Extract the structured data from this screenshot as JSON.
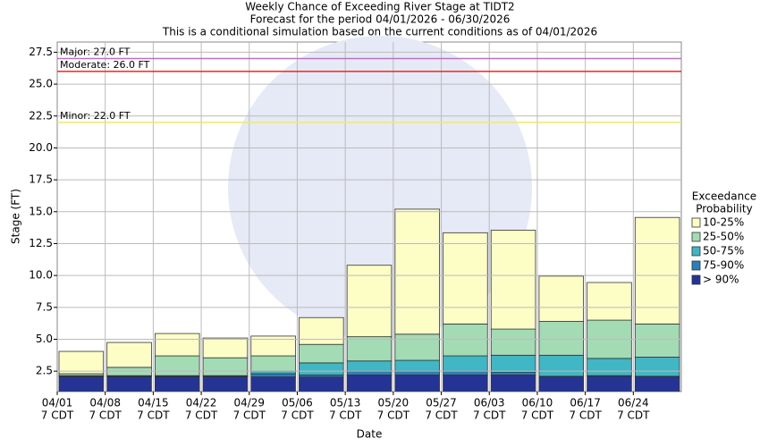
{
  "chart_data": {
    "type": "bar",
    "stacked": true,
    "title": [
      "Weekly Chance of Exceeding River Stage at TIDT2",
      "Forecast for the period 04/01/2026 - 06/30/2026",
      "This is a conditional simulation based on the current conditions as of 04/01/2026"
    ],
    "x_label": "Date",
    "y_label": "Stage (FT)",
    "categories": [
      "04/01",
      "04/08",
      "04/15",
      "04/22",
      "04/29",
      "05/06",
      "05/13",
      "05/20",
      "05/27",
      "06/03",
      "06/10",
      "06/17",
      "06/24"
    ],
    "category_suffix": "7 CDT",
    "ylim": [
      0.9,
      28.3
    ],
    "yticks": [
      2.5,
      {
        "value": 5,
        "label": "5.0"
      },
      7.5,
      {
        "value": 10,
        "label": "10.0"
      },
      12.5,
      {
        "value": 15,
        "label": "15.0"
      },
      17.5,
      {
        "value": 20,
        "label": "20.0"
      },
      22.5,
      {
        "value": 25,
        "label": "25.0"
      },
      27.5
    ],
    "grid": true,
    "legend_title": [
      "Exceedance",
      "Probability"
    ],
    "legend_position": "right",
    "series": [
      {
        "name": "10-25%",
        "color": "#fdfdc6",
        "values": [
          1.75,
          1.95,
          1.75,
          1.55,
          1.55,
          2.1,
          5.6,
          9.8,
          7.15,
          7.75,
          3.55,
          2.95,
          8.35
        ]
      },
      {
        "name": "25-50%",
        "color": "#a3dbb5",
        "values": [
          0.15,
          0.65,
          1.55,
          1.4,
          1.2,
          1.45,
          1.9,
          2.05,
          2.5,
          2.05,
          2.65,
          3.0,
          2.6
        ]
      },
      {
        "name": "50-75%",
        "color": "#41b6c4",
        "values": [
          0.05,
          0.05,
          0.05,
          0.05,
          0.2,
          0.95,
          0.8,
          0.85,
          1.2,
          1.35,
          1.65,
          1.35,
          1.5
        ]
      },
      {
        "name": "75-90%",
        "color": "#2c7fb8",
        "values": [
          0.05,
          0.05,
          0.05,
          0.05,
          0.25,
          0.15,
          0.3,
          0.3,
          0.3,
          0.2,
          0.05,
          0.05,
          0.05
        ]
      },
      {
        "name": "> 90%",
        "color": "#253494",
        "values": [
          2.05,
          2.05,
          2.05,
          2.05,
          2.05,
          2.05,
          2.2,
          2.2,
          2.2,
          2.2,
          2.05,
          2.1,
          2.05
        ]
      }
    ],
    "flood_levels": [
      {
        "label": "Major: 27.0 FT",
        "value": 27,
        "color": "#cc66cc"
      },
      {
        "label": "Moderate: 26.0 FT",
        "value": 26,
        "color": "#cc3333"
      },
      {
        "label": "Minor: 22.0 FT",
        "value": 22,
        "color": "#eeee55"
      }
    ]
  }
}
